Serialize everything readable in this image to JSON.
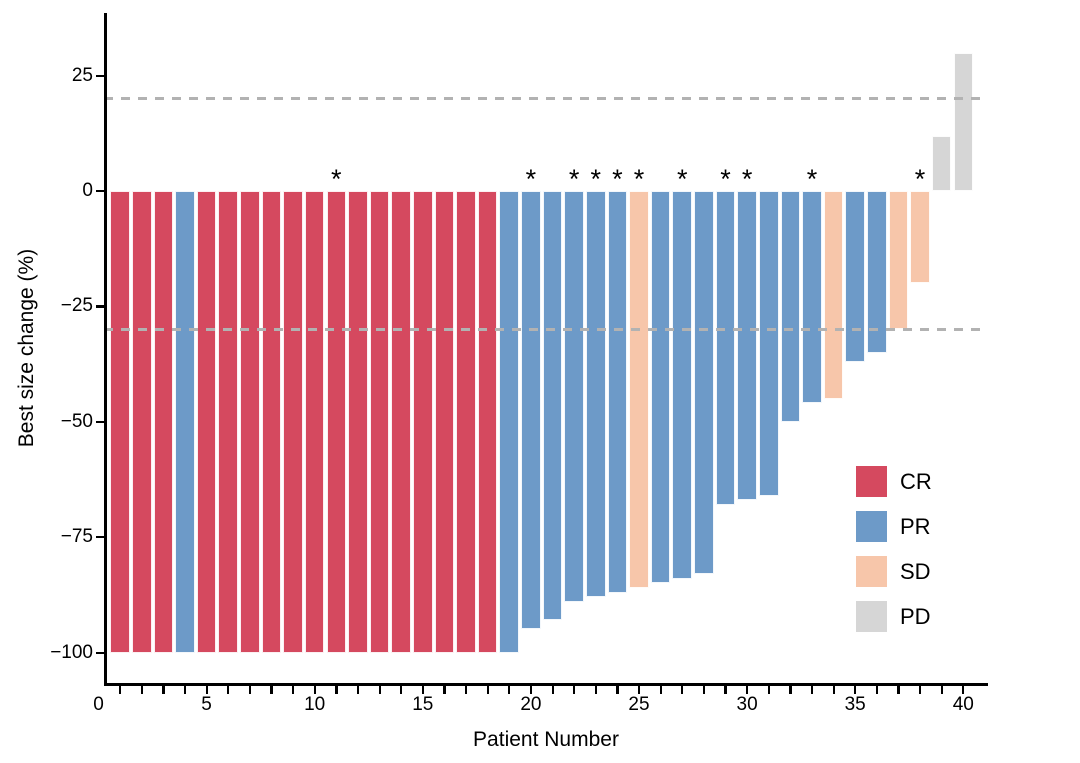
{
  "chart_data": {
    "type": "bar",
    "chart_kind": "waterfall",
    "title": "",
    "xlabel": "Patient Number",
    "ylabel": "Best size change (%)",
    "x": [
      1,
      2,
      3,
      4,
      5,
      6,
      7,
      8,
      9,
      10,
      11,
      12,
      13,
      14,
      15,
      16,
      17,
      18,
      19,
      20,
      21,
      22,
      23,
      24,
      25,
      26,
      27,
      28,
      29,
      30,
      31,
      32,
      33,
      34,
      35,
      36,
      37,
      38,
      39,
      40
    ],
    "values": [
      -100,
      -100,
      -100,
      -100,
      -100,
      -100,
      -100,
      -100,
      -100,
      -100,
      -100,
      -100,
      -100,
      -100,
      -100,
      -100,
      -100,
      -100,
      -100,
      -95,
      -93,
      -89,
      -88,
      -87,
      -86,
      -85,
      -84,
      -83,
      -68,
      -67,
      -66,
      -50,
      -46,
      -45,
      -37,
      -35,
      -30,
      -20,
      12,
      30
    ],
    "response": [
      "CR",
      "CR",
      "CR",
      "PR",
      "CR",
      "CR",
      "CR",
      "CR",
      "CR",
      "CR",
      "CR",
      "CR",
      "CR",
      "CR",
      "CR",
      "CR",
      "CR",
      "CR",
      "PR",
      "PR",
      "PR",
      "PR",
      "PR",
      "PR",
      "SD",
      "PR",
      "PR",
      "PR",
      "PR",
      "PR",
      "PR",
      "PR",
      "PR",
      "SD",
      "PR",
      "PR",
      "SD",
      "SD",
      "PD",
      "PD"
    ],
    "starred_patients": [
      11,
      20,
      22,
      23,
      24,
      25,
      27,
      29,
      30,
      33,
      38
    ],
    "star_symbol": "*",
    "reference_lines": [
      20,
      -30
    ],
    "ylim": [
      -106,
      38
    ],
    "xlim": [
      0,
      41
    ],
    "grid": "off",
    "legend_position": "right-lower",
    "y_ticks": [
      {
        "value": 25,
        "label": "25"
      },
      {
        "value": 0,
        "label": "0"
      },
      {
        "value": -25,
        "label": "−25"
      },
      {
        "value": -50,
        "label": "−50"
      },
      {
        "value": -75,
        "label": "−75"
      },
      {
        "value": -100,
        "label": "−100"
      }
    ],
    "x_tick_labels": [
      {
        "value": 0,
        "label": "0"
      },
      {
        "value": 5,
        "label": "5"
      },
      {
        "value": 10,
        "label": "10"
      },
      {
        "value": 15,
        "label": "15"
      },
      {
        "value": 20,
        "label": "20"
      },
      {
        "value": 25,
        "label": "25"
      },
      {
        "value": 30,
        "label": "30"
      },
      {
        "value": 35,
        "label": "35"
      },
      {
        "value": 40,
        "label": "40"
      }
    ],
    "legend": [
      {
        "label": "CR",
        "color": "#D5495F"
      },
      {
        "label": "PR",
        "color": "#6D9AC8"
      },
      {
        "label": "SD",
        "color": "#F7C6AA"
      },
      {
        "label": "PD",
        "color": "#D6D6D6"
      }
    ],
    "colors": {
      "CR": "#D5495F",
      "PR": "#6D9AC8",
      "SD": "#F7C6AA",
      "PD": "#D6D6D6",
      "reference_line": "#B2B2B2",
      "axis": "#000000",
      "text": "#000000",
      "bar_stroke": "#FFFFFF"
    }
  }
}
